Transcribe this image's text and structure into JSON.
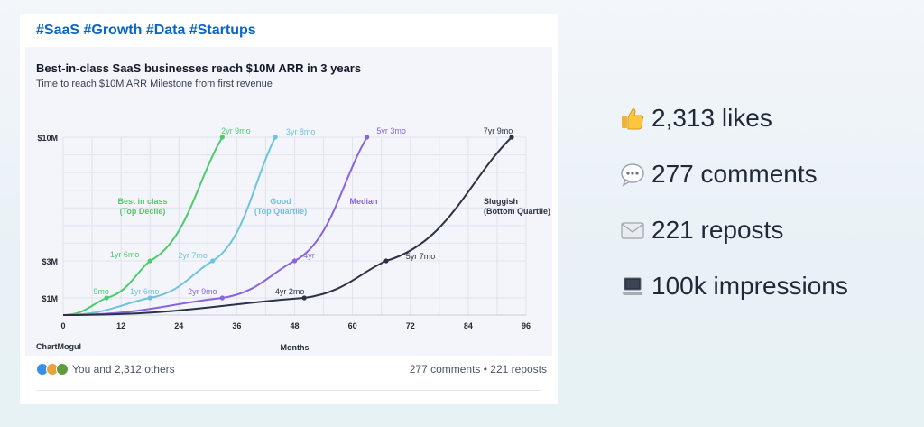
{
  "post": {
    "hashtags": "#SaaS #Growth #Data #Startups",
    "reactions_text": "You and 2,312 others",
    "comments_reposts": "277 comments • 221 reposts"
  },
  "stats": {
    "likes": "2,313 likes",
    "comments": "277 comments",
    "reposts": "221 reposts",
    "impressions": "100k impressions"
  },
  "chart_data": {
    "type": "line",
    "title": "Best-in-class SaaS businesses reach $10M ARR in 3 years",
    "subtitle": "Time to reach $10M ARR Milestone from first revenue",
    "xlabel": "Months",
    "ylabel": "",
    "brand": "ChartMogul",
    "xlim": [
      0,
      96
    ],
    "x_ticks": [
      0,
      12,
      24,
      36,
      48,
      60,
      72,
      84,
      96
    ],
    "y_ticks": [
      {
        "value": 1,
        "label": "$1M"
      },
      {
        "value": 3,
        "label": "$3M"
      },
      {
        "value": 10,
        "label": "$10M"
      }
    ],
    "grid": true,
    "series": [
      {
        "name": "Best in class",
        "name2": "(Top Decile)",
        "color": "#4ccc6b",
        "points": [
          {
            "x": 0,
            "y": 0
          },
          {
            "x": 9,
            "y": 1
          },
          {
            "x": 18,
            "y": 3
          },
          {
            "x": 33,
            "y": 10
          }
        ],
        "labels": [
          "9mo",
          "1yr 6mo",
          "2yr 9mo"
        ]
      },
      {
        "name": "Good",
        "name2": "(Top Quartile)",
        "color": "#6ec3dc",
        "points": [
          {
            "x": 0,
            "y": 0
          },
          {
            "x": 18,
            "y": 1
          },
          {
            "x": 31,
            "y": 3
          },
          {
            "x": 44,
            "y": 10
          }
        ],
        "labels": [
          "1yr 6mo",
          "2yr 7mo",
          "3yr 8mo"
        ]
      },
      {
        "name": "Median",
        "name2": "",
        "color": "#8a63e0",
        "points": [
          {
            "x": 0,
            "y": 0
          },
          {
            "x": 33,
            "y": 1
          },
          {
            "x": 48,
            "y": 3
          },
          {
            "x": 63,
            "y": 10
          }
        ],
        "labels": [
          "2yr 9mo",
          "4yr",
          "5yr 3mo"
        ]
      },
      {
        "name": "Sluggish",
        "name2": "(Bottom Quartile)",
        "color": "#2a3243",
        "points": [
          {
            "x": 0,
            "y": 0
          },
          {
            "x": 50,
            "y": 1
          },
          {
            "x": 67,
            "y": 3
          },
          {
            "x": 93,
            "y": 10
          }
        ],
        "labels": [
          "4yr 2mo",
          "5yr 7mo",
          "7yr 9mo"
        ]
      }
    ]
  }
}
